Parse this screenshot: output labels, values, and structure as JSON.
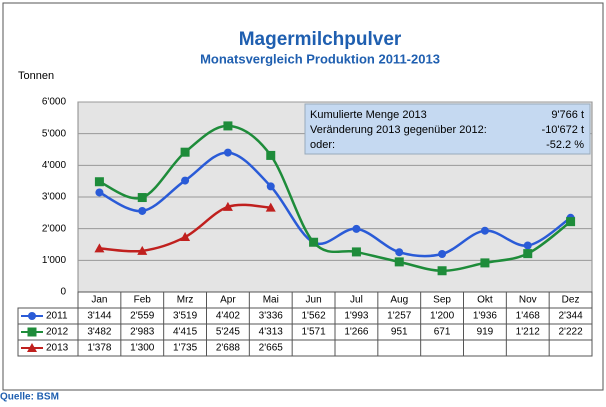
{
  "chart_data": {
    "type": "line",
    "title": "Magermilchpulver",
    "subtitle": "Monatsvergleich Produktion 2011-2013",
    "y_label": "Tonnen",
    "source": "Quelle: BSM",
    "categories": [
      "Jan",
      "Feb",
      "Mrz",
      "Apr",
      "Mai",
      "Jun",
      "Jul",
      "Aug",
      "Sep",
      "Okt",
      "Nov",
      "Dez"
    ],
    "series": [
      {
        "name": "2011",
        "color": "#2a5bd7",
        "marker": "circle",
        "values": [
          3144,
          2559,
          3519,
          4402,
          3336,
          1562,
          1993,
          1257,
          1200,
          1936,
          1468,
          2344
        ],
        "value_labels": [
          "3'144",
          "2'559",
          "3'519",
          "4'402",
          "3'336",
          "1'562",
          "1'993",
          "1'257",
          "1'200",
          "1'936",
          "1'468",
          "2'344"
        ]
      },
      {
        "name": "2012",
        "color": "#1e8c3a",
        "marker": "square",
        "values": [
          3482,
          2983,
          4415,
          5245,
          4313,
          1571,
          1266,
          951,
          671,
          919,
          1212,
          2222
        ],
        "value_labels": [
          "3'482",
          "2'983",
          "4'415",
          "5'245",
          "4'313",
          "1'571",
          "1'266",
          "951",
          "671",
          "919",
          "1'212",
          "2'222"
        ]
      },
      {
        "name": "2013",
        "color": "#c0201e",
        "marker": "triangle",
        "values": [
          1378,
          1300,
          1735,
          2688,
          2665,
          null,
          null,
          null,
          null,
          null,
          null,
          null
        ],
        "value_labels": [
          "1'378",
          "1'300",
          "1'735",
          "2'688",
          "2'665",
          null,
          null,
          null,
          null,
          null,
          null,
          null
        ]
      }
    ],
    "ylim": [
      0,
      6000
    ],
    "yticks": [
      0,
      {
        "value": 1000,
        "label": "1'000"
      },
      {
        "value": 2000,
        "label": "2'000"
      },
      {
        "value": 3000,
        "label": "3'000"
      },
      {
        "value": 4000,
        "label": "4'000"
      },
      {
        "value": 5000,
        "label": "5'000"
      },
      {
        "value": 6000,
        "label": "6'000"
      }
    ],
    "grid": true,
    "annotations": [
      {
        "label": "Kumulierte Menge 2013",
        "value": "9'766 t"
      },
      {
        "label": "Veränderung 2013 gegenüber 2012:",
        "value": "-10'672 t"
      },
      {
        "label": "oder:",
        "value": "-52.2 %"
      }
    ]
  }
}
